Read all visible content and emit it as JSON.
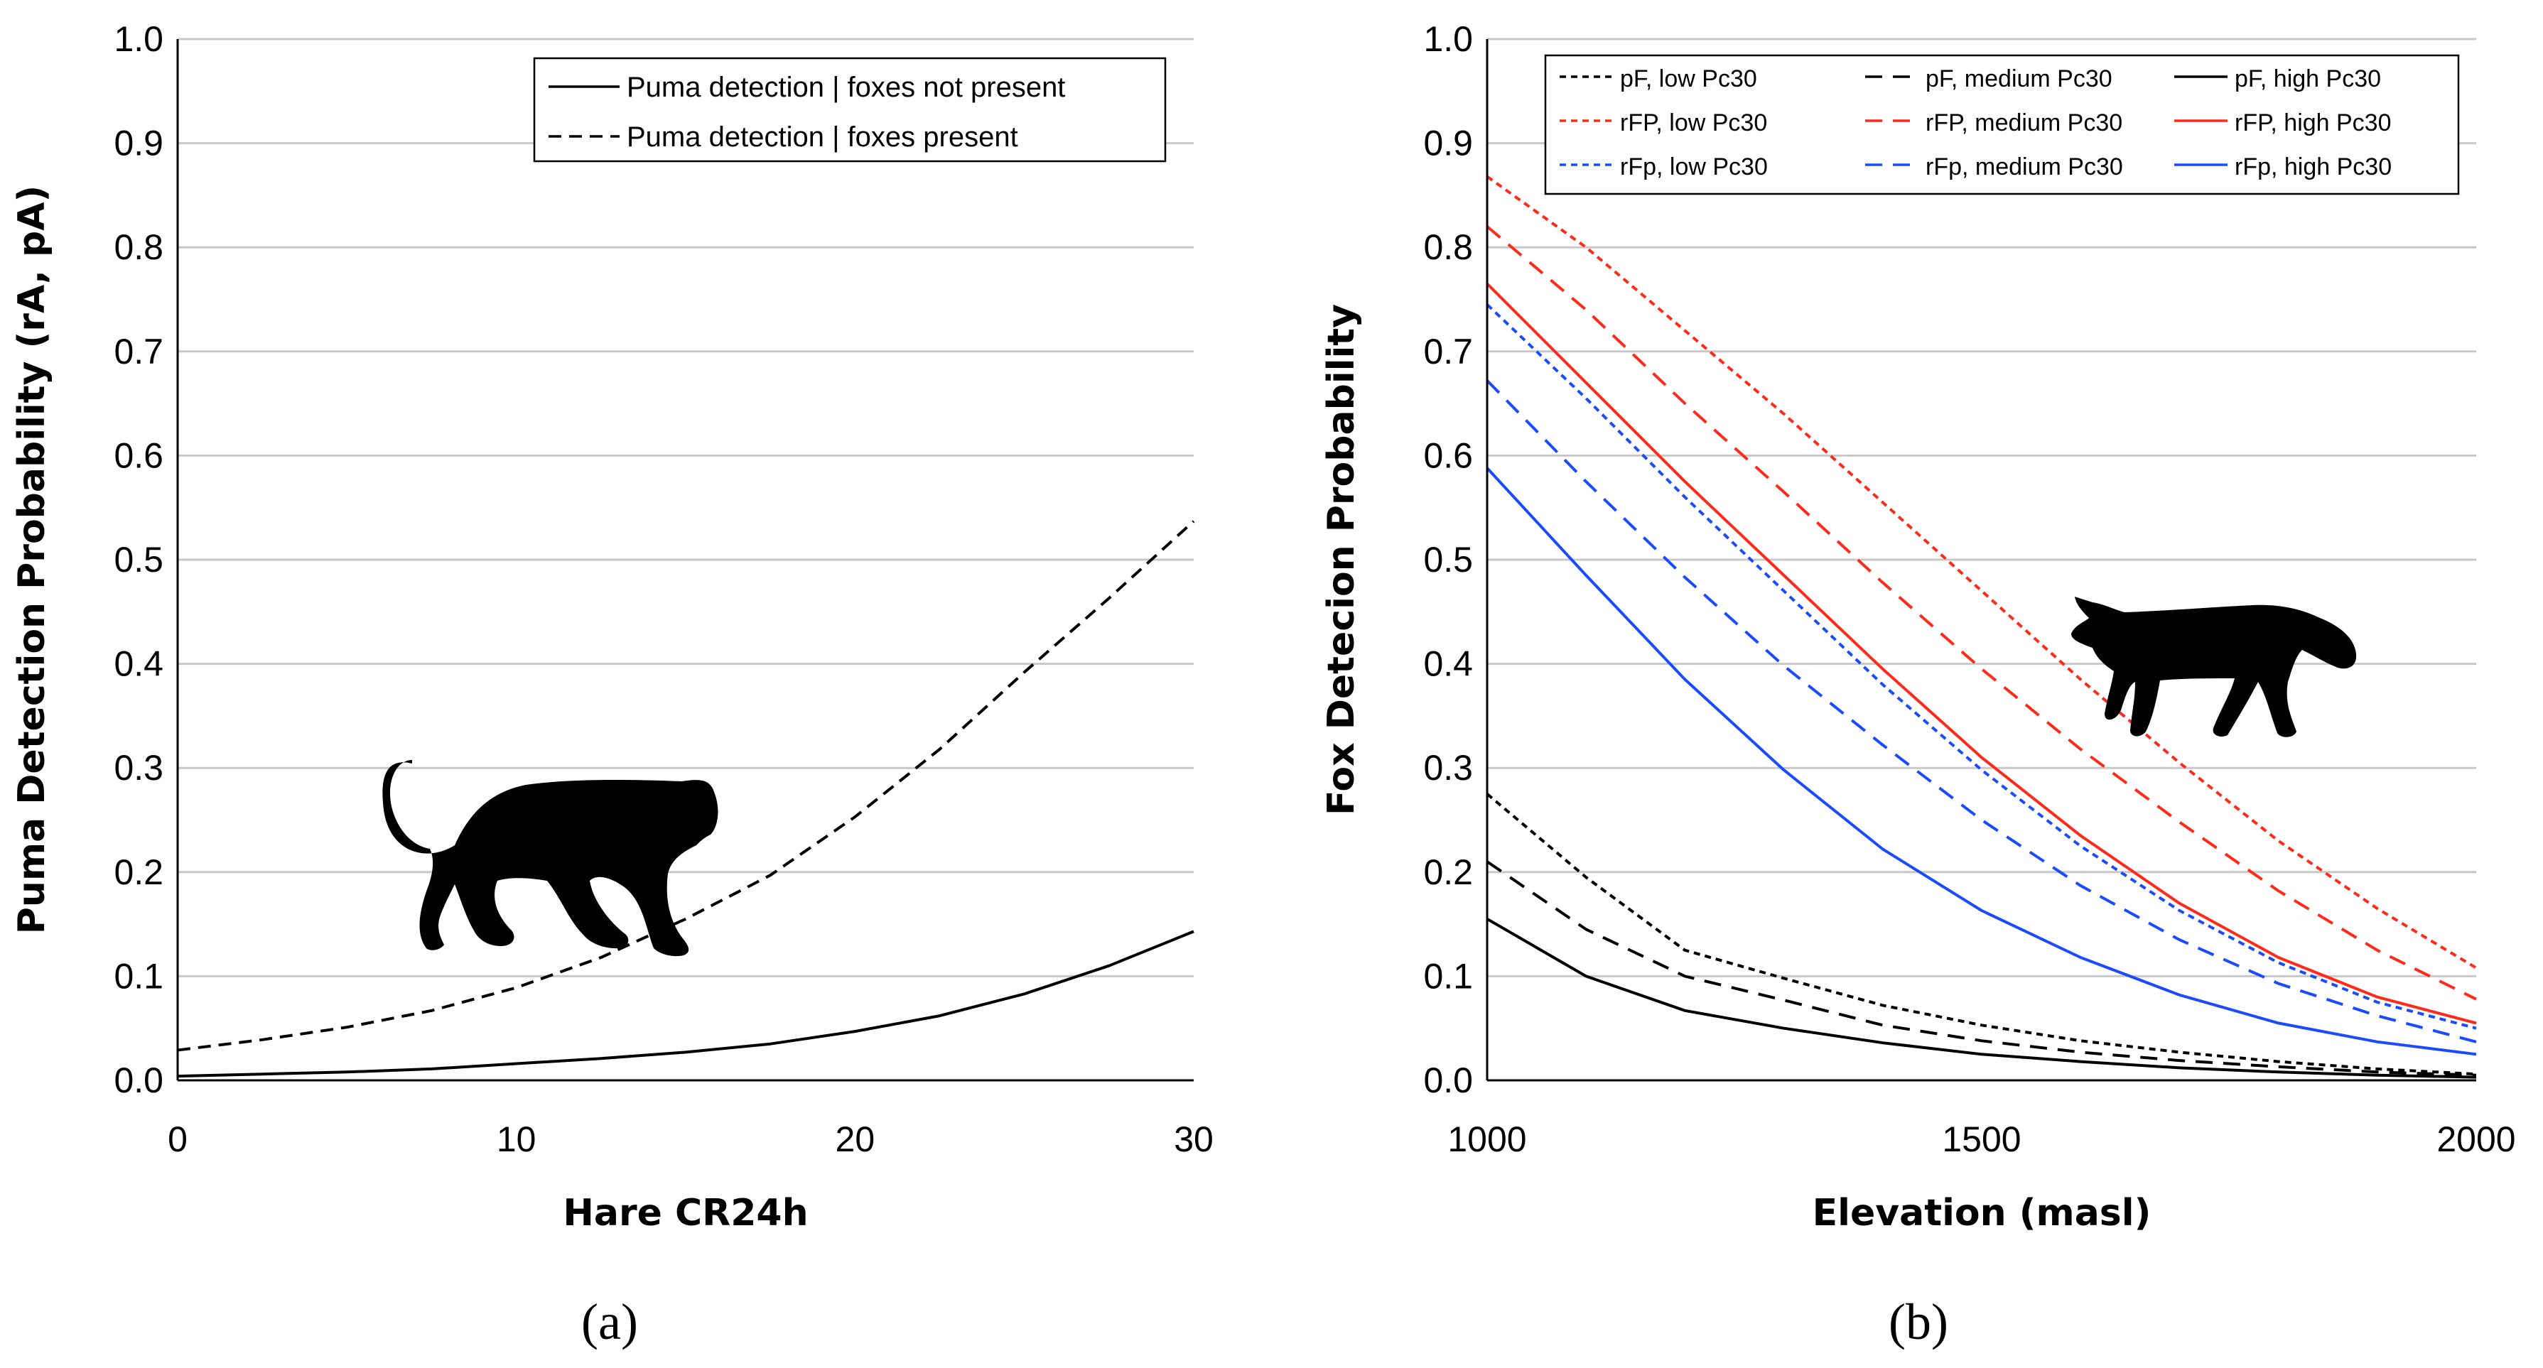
{
  "chart_data": [
    {
      "type": "line",
      "panel_label": "(a)",
      "title": "",
      "xlabel": "Hare CR24h",
      "ylabel": "Puma Detection Probability (rA, pA)",
      "xlim": [
        0,
        30
      ],
      "ylim": [
        0,
        1
      ],
      "xticks": [
        "0",
        "10",
        "20",
        "30"
      ],
      "yticks": [
        "0.0",
        "0.1",
        "0.2",
        "0.3",
        "0.4",
        "0.5",
        "0.6",
        "0.7",
        "0.8",
        "0.9",
        "1.0"
      ],
      "grid": "horizontal",
      "legend_position": "top-right",
      "series": [
        {
          "name": "Puma detection | foxes not present",
          "color": "#000000",
          "dash": "solid",
          "x": [
            0,
            2.5,
            5,
            7.5,
            10,
            12.5,
            15,
            17.5,
            20,
            22.5,
            25,
            27.5,
            30
          ],
          "y": [
            0.004,
            0.006,
            0.008,
            0.011,
            0.016,
            0.021,
            0.027,
            0.035,
            0.047,
            0.062,
            0.083,
            0.11,
            0.143
          ]
        },
        {
          "name": "Puma detection |  foxes present",
          "color": "#000000",
          "dash": "dashed",
          "x": [
            0,
            2.5,
            5,
            7.5,
            10,
            12.5,
            15,
            17.5,
            20,
            22.5,
            25,
            27.5,
            30
          ],
          "y": [
            0.029,
            0.039,
            0.051,
            0.067,
            0.089,
            0.118,
            0.155,
            0.197,
            0.253,
            0.318,
            0.392,
            0.463,
            0.537
          ]
        }
      ],
      "silhouette": "puma-silhouette"
    },
    {
      "type": "line",
      "panel_label": "(b)",
      "title": "",
      "xlabel": "Elevation (masl)",
      "ylabel": "Fox Detecion Probability",
      "xlim": [
        1000,
        2000
      ],
      "ylim": [
        0,
        1
      ],
      "xticks": [
        "1000",
        "1500",
        "2000"
      ],
      "yticks": [
        "0.0",
        "0.1",
        "0.2",
        "0.3",
        "0.4",
        "0.5",
        "0.6",
        "0.7",
        "0.8",
        "0.9",
        "1.0"
      ],
      "grid": "horizontal",
      "legend_position": "top",
      "x": [
        1000,
        1100,
        1200,
        1300,
        1400,
        1500,
        1600,
        1700,
        1800,
        1900,
        2000
      ],
      "series": [
        {
          "name": "pF, low Pc30",
          "color": "#000000",
          "dash": "short",
          "y": [
            0.275,
            0.195,
            0.125,
            0.098,
            0.072,
            0.053,
            0.038,
            0.027,
            0.018,
            0.011,
            0.006
          ]
        },
        {
          "name": "pF, medium Pc30",
          "color": "#000000",
          "dash": "long",
          "y": [
            0.21,
            0.145,
            0.1,
            0.077,
            0.053,
            0.038,
            0.027,
            0.019,
            0.013,
            0.008,
            0.005
          ]
        },
        {
          "name": "pF, high Pc30",
          "color": "#000000",
          "dash": "solid",
          "y": [
            0.155,
            0.1,
            0.067,
            0.05,
            0.036,
            0.025,
            0.018,
            0.012,
            0.008,
            0.005,
            0.003
          ]
        },
        {
          "name": "rFP, low Pc30",
          "color": "#ff2a1a",
          "dash": "short",
          "y": [
            0.868,
            0.8,
            0.72,
            0.64,
            0.555,
            0.47,
            0.385,
            0.305,
            0.23,
            0.165,
            0.108
          ]
        },
        {
          "name": "rFP, medium Pc30",
          "color": "#ff2a1a",
          "dash": "long",
          "y": [
            0.82,
            0.74,
            0.65,
            0.565,
            0.478,
            0.395,
            0.318,
            0.248,
            0.182,
            0.125,
            0.078
          ]
        },
        {
          "name": "rFP, high Pc30",
          "color": "#ff2a1a",
          "dash": "solid",
          "y": [
            0.765,
            0.67,
            0.575,
            0.485,
            0.395,
            0.31,
            0.235,
            0.17,
            0.118,
            0.08,
            0.055
          ]
        },
        {
          "name": "rFp, low Pc30",
          "color": "#1a4bff",
          "dash": "short",
          "y": [
            0.745,
            0.655,
            0.56,
            0.47,
            0.38,
            0.298,
            0.225,
            0.163,
            0.113,
            0.075,
            0.05
          ]
        },
        {
          "name": "rFp, medium Pc30",
          "color": "#1a4bff",
          "dash": "long",
          "y": [
            0.672,
            0.575,
            0.483,
            0.398,
            0.322,
            0.25,
            0.187,
            0.135,
            0.093,
            0.062,
            0.037
          ]
        },
        {
          "name": "rFp, high Pc30",
          "color": "#1a4bff",
          "dash": "solid",
          "y": [
            0.588,
            0.485,
            0.385,
            0.298,
            0.222,
            0.163,
            0.118,
            0.082,
            0.055,
            0.037,
            0.025
          ]
        }
      ],
      "silhouette": "fox-silhouette"
    }
  ]
}
